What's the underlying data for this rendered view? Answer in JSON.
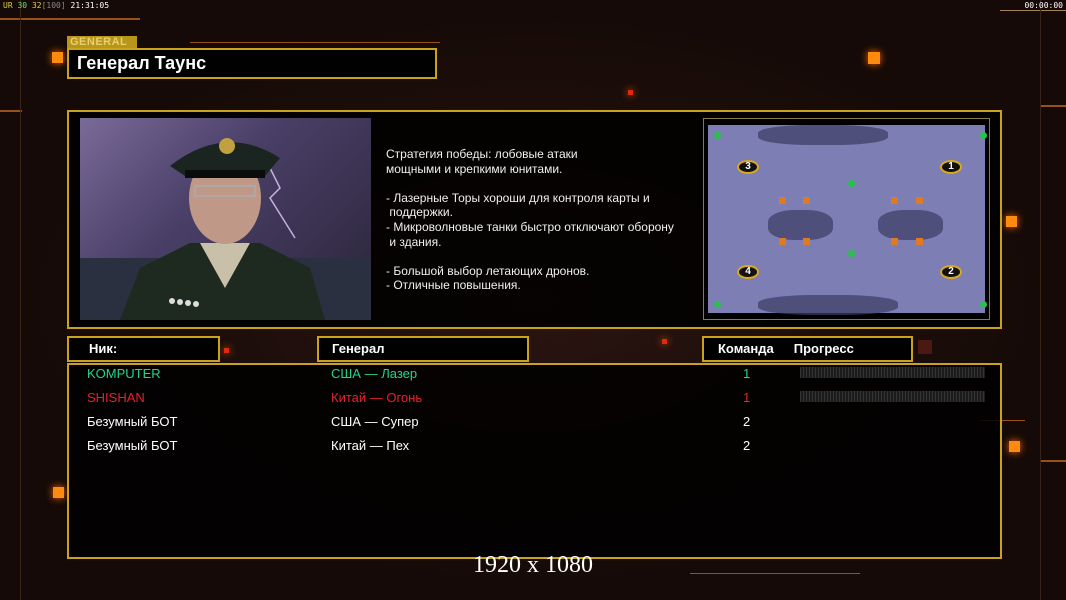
{
  "status_bar": {
    "fps_label": "UR",
    "v1": "30",
    "v2": "32",
    "v3": "[100]",
    "time": "21:31:05",
    "clock": "00:00:00"
  },
  "header": {
    "tag": "GENERAL",
    "title": "Генерал Таунс"
  },
  "general_info": {
    "description": "Стратегия победы: лобовые атаки\nмощными и крепкими юнитами.\n\n- Лазерные Торы хороши для контроля карты и\n поддержки.\n- Микроволновые танки быстро отключают оборону\n и здания.\n\n- Большой выбор летающих дронов.\n- Отличные повышения.",
    "map_start_positions": [
      "3",
      "1",
      "4",
      "2"
    ]
  },
  "table": {
    "headers": {
      "nick": "Ник:",
      "general": "Генерал",
      "team": "Команда",
      "progress": "Прогресс"
    },
    "rows": [
      {
        "nick": "KOMPUTER",
        "general": "США — Лазер",
        "team": "1",
        "progress": 0,
        "color": "#22d58a"
      },
      {
        "nick": "SHISHAN",
        "general": "Китай — Огонь",
        "team": "1",
        "progress": 0,
        "color": "#e8202a"
      },
      {
        "nick": "Безумный БОТ",
        "general": "США — Супер",
        "team": "2",
        "color": "#ffffff"
      },
      {
        "nick": "Безумный БОТ",
        "general": "Китай — Пех",
        "team": "2",
        "color": "#ffffff"
      }
    ]
  },
  "resolution": "1920 x 1080",
  "colors": {
    "accent": "#c9a31a",
    "background": "#150a07"
  }
}
